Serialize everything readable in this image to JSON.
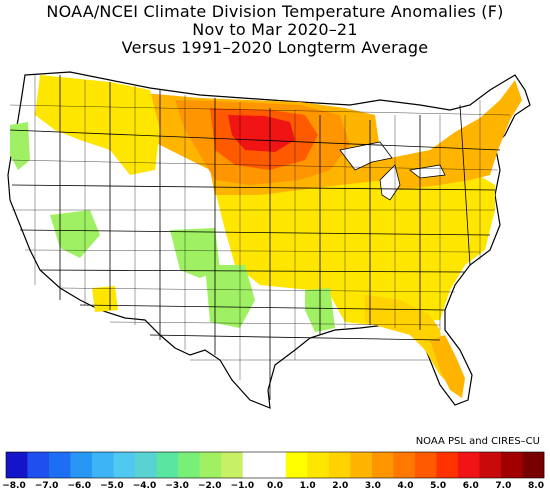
{
  "title": {
    "line1": "NOAA/NCEI Climate Division Temperature Anomalies (F)",
    "line2": "Nov to Mar 2020–21",
    "line3": "Versus 1991–2020 Longterm Average"
  },
  "credit": "NOAA PSL and CIRES–CU",
  "legend": {
    "colors": [
      "#1414c8",
      "#1e50f0",
      "#1e6ef5",
      "#2896f5",
      "#3cb4f5",
      "#50c8f0",
      "#5ad2d2",
      "#5ae6a0",
      "#78f078",
      "#a0f064",
      "#c8f064",
      "#ffffff",
      "#ffffff",
      "#ffff00",
      "#ffe600",
      "#ffd200",
      "#ffb400",
      "#ff9600",
      "#ff7800",
      "#ff5a00",
      "#ff3200",
      "#f01414",
      "#c80a0a",
      "#a00000",
      "#780000"
    ],
    "labels": [
      "−8.0",
      "−7.0",
      "−6.0",
      "−5.0",
      "−4.0",
      "−3.0",
      "−2.0",
      "−1.0",
      "0.0",
      "1.0",
      "2.0",
      "3.0",
      "4.0",
      "5.0",
      "6.0",
      "7.0",
      "8.0"
    ]
  }
}
